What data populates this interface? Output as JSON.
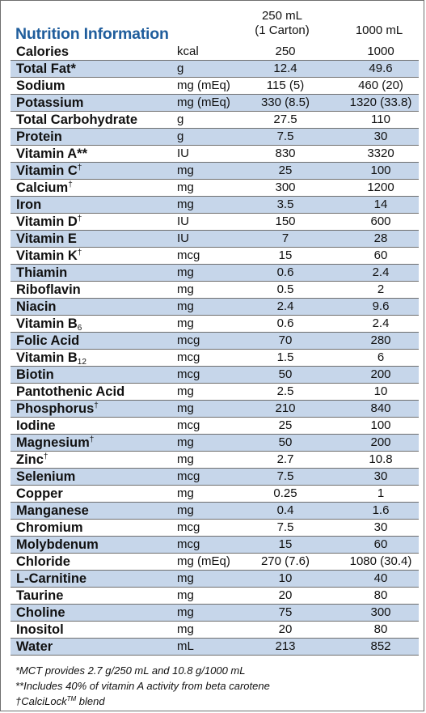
{
  "title": "Nutrition Information",
  "columns": {
    "serving_line1": "250 mL",
    "serving_line2": "(1 Carton)",
    "large": "1000 mL"
  },
  "rows": [
    {
      "name": "Calories",
      "unit": "kcal",
      "v250": "250",
      "v1000": "1000"
    },
    {
      "name": "Total Fat*",
      "unit": "g",
      "v250": "12.4",
      "v1000": "49.6"
    },
    {
      "name": "Sodium",
      "unit": "mg (mEq)",
      "v250": "115 (5)",
      "v1000": "460 (20)"
    },
    {
      "name": "Potassium",
      "unit": "mg (mEq)",
      "v250": "330 (8.5)",
      "v1000": "1320 (33.8)"
    },
    {
      "name": "Total Carbohydrate",
      "unit": "g",
      "v250": "27.5",
      "v1000": "110"
    },
    {
      "name": "Protein",
      "unit": "g",
      "v250": "7.5",
      "v1000": "30"
    },
    {
      "name": "Vitamin A**",
      "unit": "IU",
      "v250": "830",
      "v1000": "3320"
    },
    {
      "name": "Vitamin C",
      "sup": "†",
      "unit": "mg",
      "v250": "25",
      "v1000": "100"
    },
    {
      "name": "Calcium",
      "sup": "†",
      "unit": "mg",
      "v250": "300",
      "v1000": "1200"
    },
    {
      "name": "Iron",
      "unit": "mg",
      "v250": "3.5",
      "v1000": "14"
    },
    {
      "name": "Vitamin D",
      "sup": "†",
      "unit": "IU",
      "v250": "150",
      "v1000": "600"
    },
    {
      "name": "Vitamin E",
      "unit": "IU",
      "v250": "7",
      "v1000": "28"
    },
    {
      "name": "Vitamin K",
      "sup": "†",
      "unit": "mcg",
      "v250": "15",
      "v1000": "60"
    },
    {
      "name": "Thiamin",
      "unit": "mg",
      "v250": "0.6",
      "v1000": "2.4"
    },
    {
      "name": "Riboflavin",
      "unit": "mg",
      "v250": "0.5",
      "v1000": "2"
    },
    {
      "name": "Niacin",
      "unit": "mg",
      "v250": "2.4",
      "v1000": "9.6"
    },
    {
      "name": "Vitamin B",
      "sub": "6",
      "unit": "mg",
      "v250": "0.6",
      "v1000": "2.4"
    },
    {
      "name": "Folic Acid",
      "unit": "mcg",
      "v250": "70",
      "v1000": "280"
    },
    {
      "name": "Vitamin B",
      "sub": "12",
      "unit": "mcg",
      "v250": "1.5",
      "v1000": "6"
    },
    {
      "name": "Biotin",
      "unit": "mcg",
      "v250": "50",
      "v1000": "200"
    },
    {
      "name": "Pantothenic Acid",
      "unit": "mg",
      "v250": "2.5",
      "v1000": "10"
    },
    {
      "name": "Phosphorus",
      "sup": "†",
      "unit": "mg",
      "v250": "210",
      "v1000": "840"
    },
    {
      "name": "Iodine",
      "unit": "mcg",
      "v250": "25",
      "v1000": "100"
    },
    {
      "name": "Magnesium",
      "sup": "†",
      "unit": "mg",
      "v250": "50",
      "v1000": "200"
    },
    {
      "name": "Zinc",
      "sup": "†",
      "unit": "mg",
      "v250": "2.7",
      "v1000": "10.8"
    },
    {
      "name": "Selenium",
      "unit": "mcg",
      "v250": "7.5",
      "v1000": "30"
    },
    {
      "name": "Copper",
      "unit": "mg",
      "v250": "0.25",
      "v1000": "1"
    },
    {
      "name": "Manganese",
      "unit": "mg",
      "v250": "0.4",
      "v1000": "1.6"
    },
    {
      "name": "Chromium",
      "unit": "mcg",
      "v250": "7.5",
      "v1000": "30"
    },
    {
      "name": "Molybdenum",
      "unit": "mcg",
      "v250": "15",
      "v1000": "60"
    },
    {
      "name": "Chloride",
      "unit": "mg (mEq)",
      "v250": "270 (7.6)",
      "v1000": "1080 (30.4)"
    },
    {
      "name": "L-Carnitine",
      "unit": "mg",
      "v250": "10",
      "v1000": "40"
    },
    {
      "name": "Taurine",
      "unit": "mg",
      "v250": "20",
      "v1000": "80"
    },
    {
      "name": "Choline",
      "unit": "mg",
      "v250": "75",
      "v1000": "300"
    },
    {
      "name": "Inositol",
      "unit": "mg",
      "v250": "20",
      "v1000": "80"
    },
    {
      "name": "Water",
      "unit": "mL",
      "v250": "213",
      "v1000": "852"
    }
  ],
  "footnotes": {
    "mct": "*MCT provides 2.7 g/250 mL and 10.8 g/1000 mL",
    "vitamin_a": "**Includes 40% of vitamin A activity from beta carotene",
    "calcilock_prefix": "†CalciLock",
    "calcilock_tm": "TM",
    "calcilock_suffix": " blend"
  },
  "colors": {
    "title": "#1f5d9c",
    "shade": "#c6d6ea",
    "rule": "#6f6f6f"
  }
}
